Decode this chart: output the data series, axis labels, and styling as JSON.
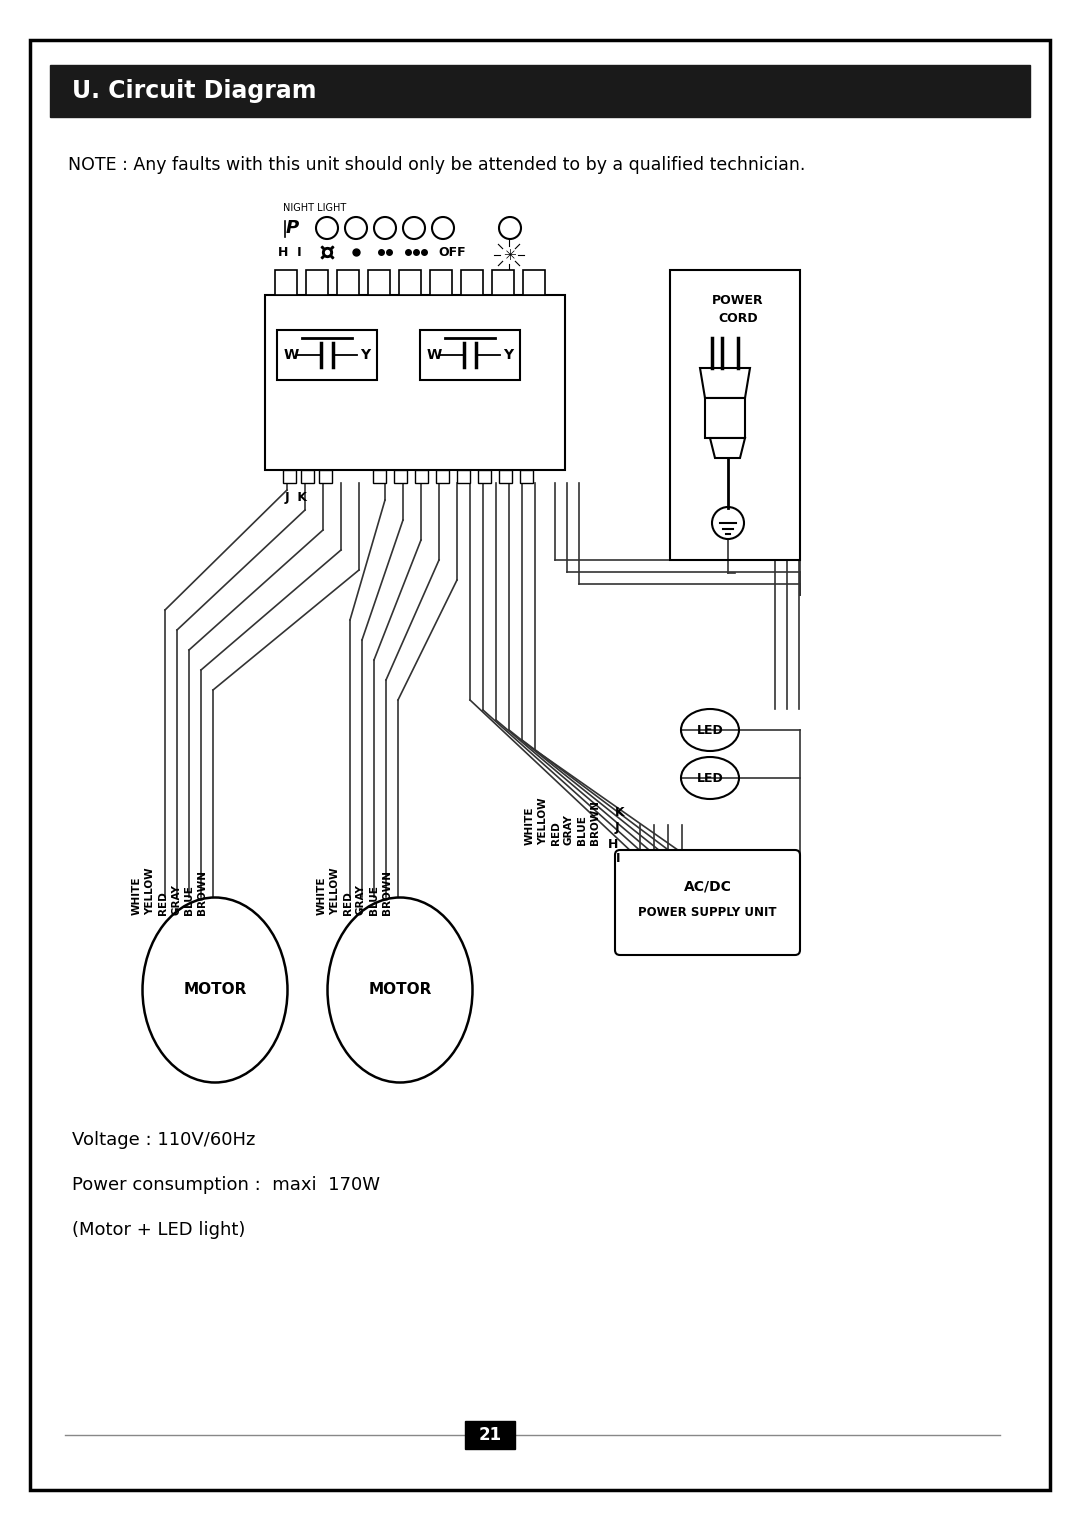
{
  "title": "U. Circuit Diagram",
  "note": "NOTE : Any faults with this unit should only be attended to by a qualified technician.",
  "voltage": "Voltage : 110V/60Hz",
  "power": "Power consumption :  maxi  170W",
  "motor_led": "(Motor + LED light)",
  "page": "21",
  "bg_color": "#ffffff",
  "border_color": "#1a1a1a",
  "title_bg": "#1a1a1a",
  "title_color": "#ffffff",
  "wire_color": "#444444",
  "line_color": "#000000"
}
